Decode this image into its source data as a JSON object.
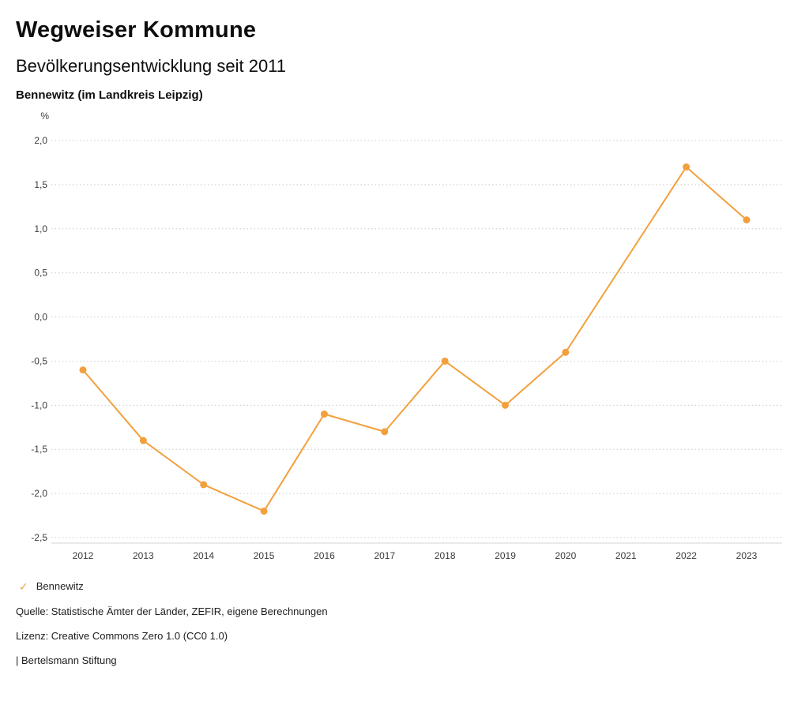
{
  "header": {
    "title": "Wegweiser Kommune",
    "subtitle": "Bevölkerungsentwicklung seit 2011",
    "location": "Bennewitz (im Landkreis Leipzig)"
  },
  "chart_data": {
    "type": "line",
    "title": "Bevölkerungsentwicklung seit 2011 — Bennewitz (im Landkreis Leipzig)",
    "categories": [
      "2012",
      "2013",
      "2014",
      "2015",
      "2016",
      "2017",
      "2018",
      "2019",
      "2020",
      "2021",
      "2022",
      "2023"
    ],
    "series": [
      {
        "name": "Bennewitz",
        "color": "#F2A03D",
        "values": [
          -0.6,
          -1.4,
          -1.9,
          -2.2,
          -1.1,
          -1.3,
          -0.5,
          -1.0,
          -0.4,
          null,
          1.7,
          1.1
        ]
      }
    ],
    "xlabel": "",
    "ylabel": "%",
    "ylim": [
      -2.5,
      2.0
    ],
    "ytick_step": 0.5,
    "ytick_labels": [
      "2,0",
      "1,5",
      "1,0",
      "0,5",
      "0,0",
      "-0,5",
      "-1,0",
      "-1,5",
      "-2,0",
      "-2,5"
    ],
    "grid": "horizontal dotted",
    "legend_position": "bottom-left",
    "marker": "filled-circle"
  },
  "legend": {
    "items": [
      {
        "label": "Bennewitz",
        "color": "#F2A03D",
        "check_icon": "✓"
      }
    ]
  },
  "footer": {
    "source": "Quelle: Statistische Ämter der Länder, ZEFIR, eigene Berechnungen",
    "license": "Lizenz: Creative Commons Zero 1.0 (CC0 1.0)",
    "attribution": "| Bertelsmann Stiftung"
  }
}
